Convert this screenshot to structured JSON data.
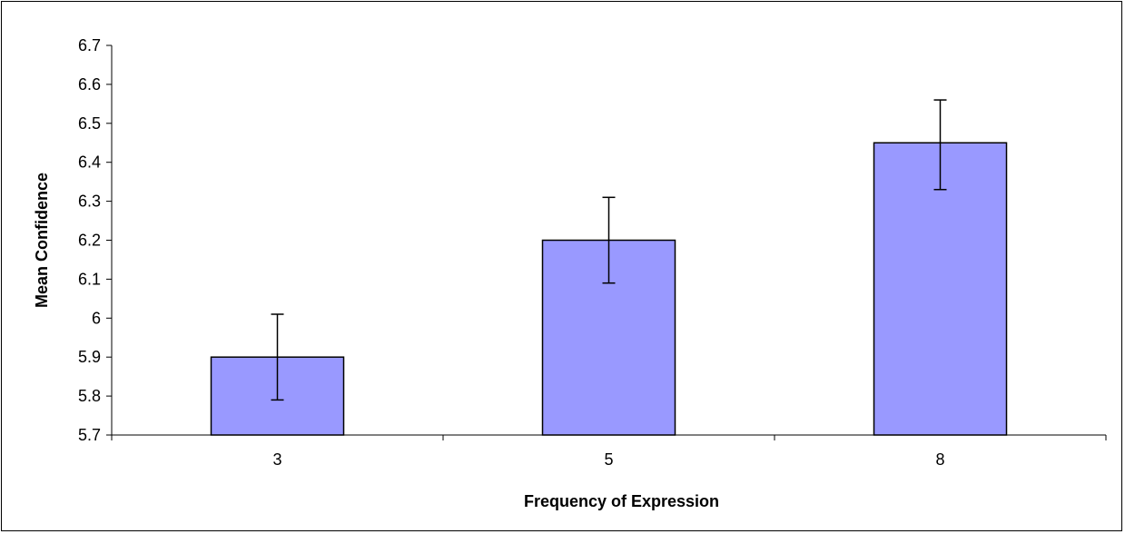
{
  "chart_data": {
    "type": "bar",
    "title": "",
    "xlabel": "Frequency of Expression",
    "ylabel": "Mean Confidence",
    "categories": [
      "3",
      "5",
      "8"
    ],
    "values": [
      5.9,
      6.2,
      6.45
    ],
    "error_bars": {
      "lower": [
        5.79,
        6.09,
        6.33
      ],
      "upper": [
        6.01,
        6.31,
        6.56
      ]
    },
    "ylim": [
      5.7,
      6.7
    ],
    "yticks": [
      "5.7",
      "5.8",
      "5.9",
      "6",
      "6.1",
      "6.2",
      "6.3",
      "6.4",
      "6.5",
      "6.6",
      "6.7"
    ],
    "grid": false,
    "legend": "none",
    "colors": {
      "bar_fill": "#9999FF",
      "bar_stroke": "#000000",
      "axis": "#000000",
      "background": "#FFFFFF"
    }
  }
}
